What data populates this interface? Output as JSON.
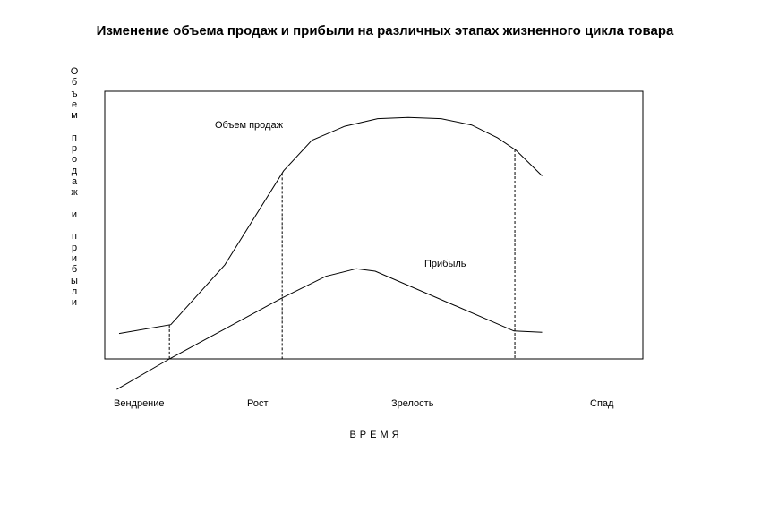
{
  "chart_data": {
    "type": "line",
    "title": "Изменение объема продаж и прибыли на различных этапах жизненного цикла товара",
    "ylabel": "Объем продаж и прибыли",
    "xlabel": "ВРЕМЯ",
    "categories": [
      "Вендрение",
      "Рост",
      "Зрелость",
      "Спад"
    ],
    "grid": false,
    "legend": "none",
    "stage_boundaries": [
      0.107,
      0.347,
      0.842
    ],
    "series": [
      {
        "name": "Объем продаж",
        "x": [
          0,
          0.11,
          0.225,
          0.35,
          0.41,
          0.48,
          0.55,
          0.615,
          0.685,
          0.75,
          0.805,
          0.845,
          0.9
        ],
        "y": [
          0.1,
          0.135,
          0.37,
          0.74,
          0.86,
          0.915,
          0.945,
          0.95,
          0.945,
          0.92,
          0.87,
          0.82,
          0.72
        ]
      },
      {
        "name": "Прибыль",
        "x": [
          -0.005,
          0.107,
          0.347,
          0.44,
          0.505,
          0.545,
          0.84,
          0.9
        ],
        "y": [
          -0.12,
          0.0,
          0.24,
          0.325,
          0.355,
          0.345,
          0.11,
          0.105
        ]
      }
    ]
  }
}
